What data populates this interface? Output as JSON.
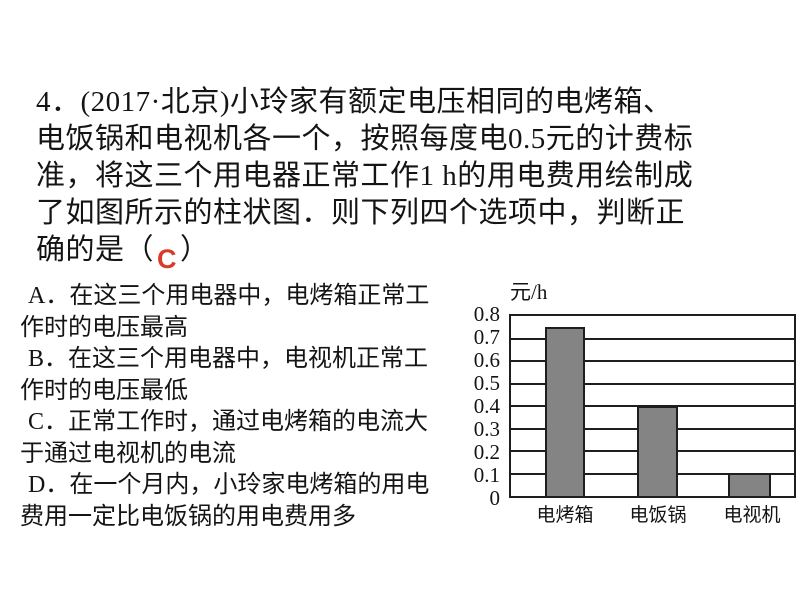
{
  "page": {
    "background": "#ffffff",
    "text_color": "#141414"
  },
  "question": {
    "lines": [
      "4．(2017·北京)小玲家有额定电压相同的电烤箱、",
      "电饭锅和电视机各一个，按照每度电0.5元的计费标",
      "准，将这三个用电器正常工作1 h的用电费用绘制成",
      "了如图所示的柱状图．则下列四个选项中，判断正"
    ],
    "last_line_prefix": "确的是（",
    "answer": "C",
    "answer_color": "#d93a2b",
    "last_line_suffix": "）"
  },
  "options": {
    "lines": [
      "A．在这三个用电器中，电烤箱正常工",
      "作时的电压最高",
      "B．在这三个用电器中，电视机正常工",
      "作时的电压最低",
      "C．正常工作时，通过电烤箱的电流大",
      "于通过电视机的电流",
      "D．在一个月内，小玲家电烤箱的用电",
      "费用一定比电饭锅的用电费用多"
    ]
  },
  "chart_data": {
    "type": "bar",
    "title": "",
    "unit_label": "元/h",
    "categories": [
      "电烤箱",
      "电饭锅",
      "电视机"
    ],
    "values": [
      0.75,
      0.4,
      0.1
    ],
    "yticks": [
      "0.8",
      "0.7",
      "0.6",
      "0.5",
      "0.4",
      "0.3",
      "0.2",
      "0.1",
      "0"
    ],
    "ylim": [
      0,
      0.8
    ],
    "xlabel": "",
    "ylabel": "元/h",
    "grid": true,
    "legend": false,
    "bar_color": "#848484",
    "axis_color": "#1e1e1e"
  }
}
